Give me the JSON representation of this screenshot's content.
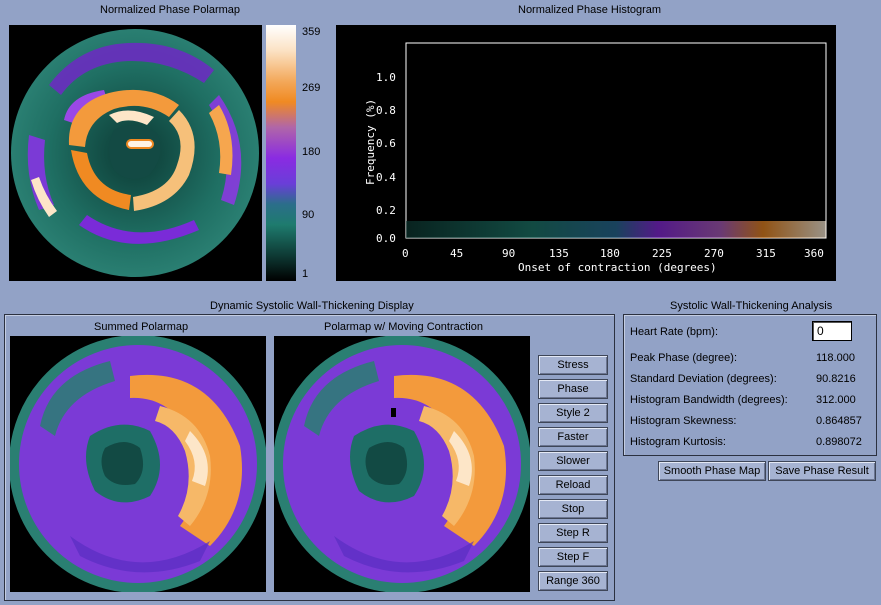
{
  "polarmap": {
    "title": "Normalized Phase Polarmap",
    "colorbar_ticks": [
      "359",
      "269",
      "180",
      "90",
      "1"
    ]
  },
  "histogram": {
    "title": "Normalized Phase Histogram",
    "xlabel": "Onset of contraction (degrees)",
    "ylabel": "Frequency (%)",
    "xticks": [
      "0",
      "45",
      "90",
      "135",
      "180",
      "225",
      "270",
      "315",
      "360"
    ],
    "yticks": [
      "0.0",
      "0.2",
      "0.4",
      "0.6",
      "0.8",
      "1.0"
    ]
  },
  "dynamic": {
    "title": "Dynamic Systolic Wall-Thickening Display",
    "summed_title": "Summed Polarmap",
    "moving_title": "Polarmap w/ Moving Contraction",
    "buttons": [
      "Stress",
      "Phase",
      "Style 2",
      "Faster",
      "Slower",
      "Reload",
      "Stop",
      "Step R",
      "Step F",
      "Range 360"
    ]
  },
  "analysis": {
    "title": "Systolic Wall-Thickening Analysis",
    "heart_rate_label": "Heart Rate (bpm):",
    "heart_rate_value": "0",
    "rows": [
      {
        "label": "Peak Phase (degree):",
        "value": "118.000"
      },
      {
        "label": "Standard Deviation (degrees):",
        "value": "90.8216"
      },
      {
        "label": "Histogram Bandwidth (degrees):",
        "value": "312.000"
      },
      {
        "label": "Histogram Skewness:",
        "value": "0.864857"
      },
      {
        "label": "Histogram Kurtosis:",
        "value": "0.898072"
      }
    ],
    "smooth_button": "Smooth Phase Map",
    "save_button": "Save Phase Result"
  },
  "colors": {
    "background": "#92a2c6",
    "teal": "#1e7b6e",
    "purple": "#7a2bd8",
    "orange": "#f0861e",
    "peach": "#fbe2c4"
  }
}
